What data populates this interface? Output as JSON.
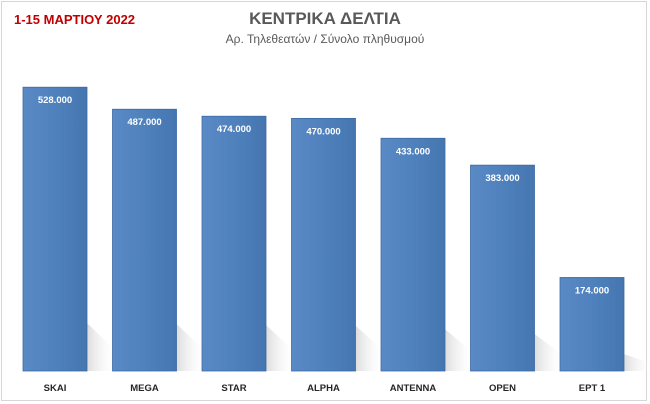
{
  "chart_data": {
    "type": "bar",
    "title": "ΚΕΝΤΡΙΚΑ ΔΕΛΤΙΑ",
    "subtitle": "Αρ. Τηλεθεατών / Σύνολο πληθυσμού",
    "period_label": "1-15 ΜΑΡΤΙΟΥ 2022",
    "categories": [
      "SKAI",
      "MEGA",
      "STAR",
      "ALPHA",
      "ANTENNA",
      "OPEN",
      "ΕΡΤ 1"
    ],
    "values": [
      528000,
      487000,
      474000,
      470000,
      433000,
      383000,
      174000
    ],
    "value_labels": [
      "528.000",
      "487.000",
      "474.000",
      "470.000",
      "433.000",
      "383.000",
      "174.000"
    ],
    "ylim": [
      0,
      560000
    ],
    "grid": false,
    "legend": false,
    "colors": {
      "bar": "#4f81bd",
      "bar_dark": "#3d6ba3",
      "title": "#595959",
      "period": "#c00000"
    }
  }
}
